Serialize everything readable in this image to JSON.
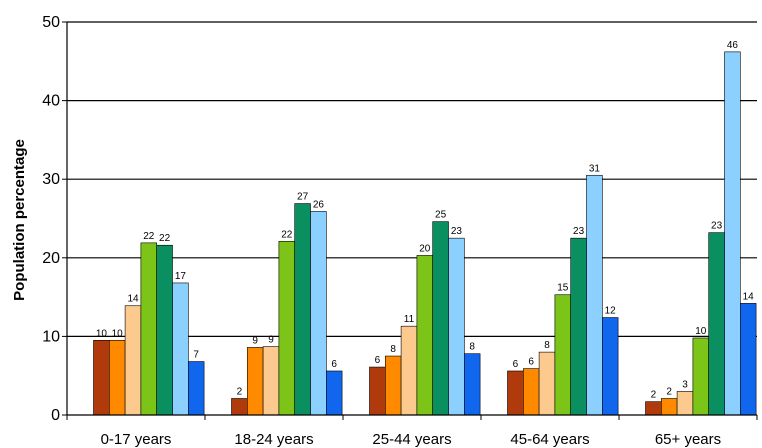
{
  "chart_data": {
    "type": "bar",
    "title": "",
    "xlabel": "",
    "ylabel": "Population percentage",
    "ylim": [
      0,
      50
    ],
    "yticks": [
      0,
      10,
      20,
      30,
      40,
      50
    ],
    "grid": true,
    "legend": "none",
    "categories": [
      "0-17 years",
      "18-24 years",
      "25-44 years",
      "45-64 years",
      "65+ years"
    ],
    "series": [
      {
        "color": "#b03a0c",
        "values": [
          9.5,
          2.1,
          6.1,
          5.6,
          1.7
        ],
        "labels": [
          "10",
          "2",
          "6",
          "6",
          "2"
        ]
      },
      {
        "color": "#ff8a00",
        "values": [
          9.5,
          8.6,
          7.5,
          5.9,
          2.1
        ],
        "labels": [
          "10",
          "9",
          "8",
          "6",
          "2"
        ]
      },
      {
        "color": "#fcc98e",
        "values": [
          13.9,
          8.7,
          11.3,
          8.0,
          3.0
        ],
        "labels": [
          "14",
          "9",
          "11",
          "8",
          "3"
        ]
      },
      {
        "color": "#7cc417",
        "values": [
          21.9,
          22.1,
          20.3,
          15.3,
          9.8
        ],
        "labels": [
          "22",
          "22",
          "20",
          "15",
          "10"
        ]
      },
      {
        "color": "#0a9060",
        "values": [
          21.6,
          26.9,
          24.6,
          22.5,
          23.2
        ],
        "labels": [
          "22",
          "27",
          "25",
          "23",
          "23"
        ]
      },
      {
        "color": "#8cd0ff",
        "values": [
          16.8,
          25.9,
          22.5,
          30.5,
          46.2
        ],
        "labels": [
          "17",
          "26",
          "23",
          "31",
          "46"
        ]
      },
      {
        "color": "#1166ee",
        "values": [
          6.8,
          5.6,
          7.8,
          12.4,
          14.2
        ],
        "labels": [
          "7",
          "6",
          "8",
          "12",
          "14"
        ]
      }
    ]
  }
}
